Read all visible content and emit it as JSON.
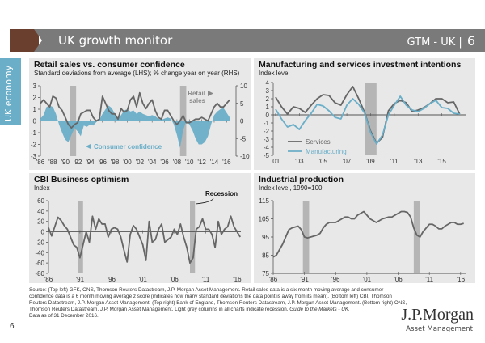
{
  "header": {
    "title": "UK growth monitor",
    "tag": "GTM - UK",
    "page": "6"
  },
  "sidebar": {
    "label": "UK economy"
  },
  "colors": {
    "brown": "#6b3f2e",
    "gray_bar": "#7a7a7a",
    "accent_blue": "#6aaec8",
    "line_gray": "#666666",
    "recession": "#b5b5b5"
  },
  "chart_data": [
    {
      "id": "retail",
      "type": "line",
      "title": "Retail sales vs. consumer confidence",
      "subtitle": "Standard deviations from average (LHS); % change year on year (RHS)",
      "x_ticks": [
        "'86",
        "'88",
        "'90",
        "'92",
        "'94",
        "'96",
        "'98",
        "'00",
        "'02",
        "'04",
        "'06",
        "'08",
        "'10",
        "'12",
        "'14",
        "'16"
      ],
      "xlim": [
        1986,
        2017
      ],
      "ylim_left": [
        -3,
        3
      ],
      "yticks_left": [
        3,
        2,
        1,
        0,
        -1,
        -2,
        -3
      ],
      "ylim_right": [
        -10,
        10
      ],
      "yticks_right": [
        10,
        5,
        0,
        -5,
        -10
      ],
      "recessions": [
        [
          1990.75,
          1991.75
        ],
        [
          2008.5,
          2009.5
        ]
      ],
      "series": [
        {
          "name": "Consumer confidence",
          "axis": "left",
          "style": "area",
          "color": "#6aaec8",
          "x": [
            1986,
            1986.5,
            1987,
            1987.5,
            1988,
            1988.5,
            1989,
            1989.5,
            1990,
            1990.5,
            1991,
            1991.5,
            1992,
            1992.5,
            1993,
            1993.5,
            1994,
            1994.5,
            1995,
            1995.5,
            1996,
            1996.5,
            1997,
            1997.5,
            1998,
            1998.5,
            1999,
            1999.5,
            2000,
            2000.5,
            2001,
            2001.5,
            2002,
            2002.5,
            2003,
            2003.5,
            2004,
            2004.5,
            2005,
            2005.5,
            2006,
            2006.5,
            2007,
            2007.5,
            2008,
            2008.5,
            2009,
            2009.5,
            2010,
            2010.5,
            2011,
            2011.5,
            2012,
            2012.5,
            2013,
            2013.5,
            2014,
            2014.5,
            2015,
            2015.5,
            2016,
            2016.5
          ],
          "values": [
            0.2,
            0.5,
            1.2,
            1.3,
            1.2,
            0.6,
            -0.3,
            -1.0,
            -1.6,
            -1.8,
            -1.2,
            -0.6,
            -0.9,
            -1.3,
            -0.4,
            -0.5,
            -0.3,
            -0.4,
            -0.1,
            0.1,
            0.6,
            1.0,
            1.3,
            1.1,
            0.6,
            0.2,
            0.5,
            0.9,
            1.0,
            0.8,
            0.9,
            0.6,
            0.8,
            0.6,
            0.5,
            0.4,
            0.5,
            0.4,
            0.2,
            0.1,
            0.2,
            0.3,
            0.2,
            -0.3,
            -1.2,
            -2.3,
            -0.8,
            0.0,
            -0.3,
            -0.8,
            -1.5,
            -2.0,
            -2.0,
            -1.8,
            -1.3,
            -0.3,
            0.5,
            0.8,
            1.0,
            1.1,
            0.7,
            0.3
          ]
        },
        {
          "name": "Retail sales",
          "axis": "right",
          "style": "line",
          "color": "#666666",
          "x": [
            1986,
            1986.5,
            1987,
            1987.5,
            1988,
            1988.5,
            1989,
            1989.5,
            1990,
            1990.5,
            1991,
            1991.5,
            1992,
            1992.5,
            1993,
            1993.5,
            1994,
            1994.5,
            1995,
            1995.5,
            1996,
            1996.5,
            1997,
            1997.5,
            1998,
            1998.5,
            1999,
            1999.5,
            2000,
            2000.5,
            2001,
            2001.5,
            2002,
            2002.5,
            2003,
            2003.5,
            2004,
            2004.5,
            2005,
            2005.5,
            2006,
            2006.5,
            2007,
            2007.5,
            2008,
            2008.5,
            2009,
            2009.5,
            2010,
            2010.5,
            2011,
            2011.5,
            2012,
            2012.5,
            2013,
            2013.5,
            2014,
            2014.5,
            2015,
            2015.5,
            2016,
            2016.5
          ],
          "values": [
            5,
            6,
            5,
            4,
            7,
            6.5,
            4,
            3,
            1,
            -1,
            -2,
            -1,
            -0.5,
            2,
            2.5,
            3,
            3,
            1,
            0,
            0.5,
            7,
            5,
            3,
            2,
            2,
            0.5,
            3.5,
            2.5,
            3,
            6,
            7,
            4,
            8,
            5,
            3.5,
            5,
            6,
            3,
            1,
            0.5,
            3,
            3,
            1.5,
            0,
            -1,
            0,
            1.5,
            -0.5,
            -0.5,
            0,
            0.5,
            0.5,
            1,
            0.5,
            0,
            2,
            4,
            5,
            4,
            4,
            5,
            6
          ]
        }
      ],
      "annotations": [
        "Retail sales",
        "Consumer confidence"
      ]
    },
    {
      "id": "investment",
      "type": "line",
      "title": "Manufacturing and services investment intentions",
      "subtitle": "Index level",
      "x_ticks": [
        "'01",
        "'03",
        "'05",
        "'07",
        "'09",
        "'11",
        "'13",
        "'15"
      ],
      "xlim": [
        2000.8,
        2017
      ],
      "ylim": [
        -5,
        4
      ],
      "yticks": [
        4,
        3,
        2,
        1,
        0,
        -1,
        -2,
        -3,
        -4,
        -5
      ],
      "recessions": [
        [
          2008.5,
          2009.5
        ]
      ],
      "legend": "bottom-left",
      "series": [
        {
          "name": "Services",
          "color": "#666666",
          "x": [
            2001,
            2001.5,
            2002,
            2002.5,
            2003,
            2003.5,
            2004,
            2004.5,
            2005,
            2005.5,
            2006,
            2006.5,
            2007,
            2007.5,
            2008,
            2008.5,
            2009,
            2009.5,
            2010,
            2010.5,
            2011,
            2011.5,
            2012,
            2012.5,
            2013,
            2013.5,
            2014,
            2014.5,
            2015,
            2015.5,
            2016,
            2016.5
          ],
          "values": [
            2.2,
            1.0,
            0.1,
            1.0,
            0.8,
            0.3,
            1.2,
            2.0,
            2.5,
            2.4,
            1.5,
            1.2,
            2.5,
            3.5,
            2.0,
            0.3,
            -2.0,
            -3.5,
            -2.8,
            0.5,
            1.4,
            1.8,
            1.5,
            0.4,
            0.6,
            0.9,
            1.4,
            2.0,
            2.0,
            1.5,
            1.6,
            0.1
          ]
        },
        {
          "name": "Manufacturing",
          "color": "#6aaec8",
          "x": [
            2001,
            2001.5,
            2002,
            2002.5,
            2003,
            2003.5,
            2004,
            2004.5,
            2005,
            2005.5,
            2006,
            2006.5,
            2007,
            2007.5,
            2008,
            2008.5,
            2009,
            2009.5,
            2010,
            2010.5,
            2011,
            2011.5,
            2012,
            2012.5,
            2013,
            2013.5,
            2014,
            2014.5,
            2015,
            2015.5,
            2016,
            2016.5
          ],
          "values": [
            0.7,
            -0.5,
            -1.5,
            -1.2,
            -1.8,
            -0.7,
            0.2,
            1.3,
            1.1,
            0.5,
            -0.3,
            -0.5,
            1.2,
            2.0,
            1.3,
            0.2,
            -2.2,
            -3.6,
            -2.5,
            0.0,
            1.2,
            2.3,
            1.2,
            0.6,
            0.4,
            0.8,
            1.4,
            1.8,
            0.9,
            0.8,
            0.2,
            0.1
          ]
        }
      ]
    },
    {
      "id": "cbi",
      "type": "line",
      "title": "CBI Business optimism",
      "subtitle": "Index",
      "x_ticks": [
        "'86",
        "'91",
        "'96",
        "'01",
        "'06",
        "'11",
        "'16"
      ],
      "xlim": [
        1986,
        2016.6
      ],
      "ylim": [
        -80,
        60
      ],
      "yticks": [
        60,
        40,
        20,
        0,
        -20,
        -40,
        -60,
        -80
      ],
      "recessions": [
        [
          1990.75,
          1991.5
        ],
        [
          2008.5,
          2009.3
        ]
      ],
      "annotation": "Recession",
      "series": [
        {
          "name": "CBI Business optimism",
          "color": "#666666",
          "x": [
            1986,
            1986.5,
            1987,
            1987.5,
            1988,
            1988.5,
            1989,
            1989.5,
            1990,
            1990.5,
            1991,
            1991.5,
            1992,
            1992.5,
            1993,
            1993.5,
            1994,
            1994.5,
            1995,
            1995.5,
            1996,
            1996.5,
            1997,
            1997.5,
            1998,
            1998.5,
            1999,
            1999.5,
            2000,
            2000.5,
            2001,
            2001.5,
            2002,
            2002.5,
            2003,
            2003.5,
            2004,
            2004.5,
            2005,
            2005.5,
            2006,
            2006.5,
            2007,
            2007.5,
            2008,
            2008.5,
            2009,
            2009.5,
            2010,
            2010.5,
            2011,
            2011.5,
            2012,
            2012.5,
            2013,
            2013.5,
            2014,
            2014.5,
            2015,
            2015.5,
            2016,
            2016.5
          ],
          "values": [
            8,
            -8,
            10,
            28,
            22,
            12,
            5,
            -10,
            -25,
            -30,
            -50,
            -25,
            0,
            -20,
            30,
            5,
            25,
            15,
            15,
            -10,
            5,
            8,
            5,
            -10,
            -35,
            -58,
            -5,
            12,
            5,
            -10,
            -25,
            -55,
            20,
            -20,
            -15,
            5,
            15,
            -20,
            -15,
            -10,
            5,
            -5,
            15,
            -10,
            -30,
            -60,
            -50,
            5,
            10,
            25,
            5,
            5,
            -5,
            -30,
            20,
            -5,
            5,
            10,
            30,
            10,
            0,
            -10
          ]
        }
      ]
    },
    {
      "id": "industrial",
      "type": "line",
      "title": "Industrial production",
      "subtitle": "Index level, 1990=100",
      "x_ticks": [
        "'86",
        "'91",
        "'96",
        "'01",
        "'06",
        "'11",
        "'16"
      ],
      "xlim": [
        1986,
        2016.8
      ],
      "ylim": [
        75,
        115
      ],
      "yticks": [
        115,
        105,
        95,
        85,
        75
      ],
      "recessions": [
        [
          1990.75,
          1991.75
        ],
        [
          2008.5,
          2009.5
        ]
      ],
      "series": [
        {
          "name": "Industrial production",
          "color": "#666666",
          "x": [
            1986,
            1986.5,
            1987,
            1987.5,
            1988,
            1988.5,
            1989,
            1989.5,
            1990,
            1990.5,
            1991,
            1991.5,
            1992,
            1992.5,
            1993,
            1993.5,
            1994,
            1994.5,
            1995,
            1995.5,
            1996,
            1996.5,
            1997,
            1997.5,
            1998,
            1998.5,
            1999,
            1999.5,
            2000,
            2000.5,
            2001,
            2001.5,
            2002,
            2002.5,
            2003,
            2003.5,
            2004,
            2004.5,
            2005,
            2005.5,
            2006,
            2006.5,
            2007,
            2007.5,
            2008,
            2008.5,
            2009,
            2009.5,
            2010,
            2010.5,
            2011,
            2011.5,
            2012,
            2012.5,
            2013,
            2013.5,
            2014,
            2014.5,
            2015,
            2015.5,
            2016,
            2016.5
          ],
          "values": [
            84,
            85,
            88,
            91,
            95,
            99,
            100,
            100.5,
            101,
            99,
            95,
            94.5,
            95,
            95.5,
            96,
            97,
            100,
            102,
            103,
            103,
            103,
            104,
            105,
            106,
            106,
            105,
            105,
            107,
            108,
            109,
            107,
            105,
            104,
            103,
            104,
            105,
            105.5,
            106,
            106,
            107,
            108,
            109,
            109,
            108.5,
            106,
            100,
            96,
            95,
            98,
            100,
            102,
            102,
            101,
            99.5,
            99.5,
            101,
            102,
            103,
            103,
            102,
            102,
            102.5
          ]
        }
      ]
    }
  ],
  "footer": {
    "source": "Source: (Top left) GFK, ONS, Thomson Reuters Datastream, J.P. Morgan Asset Management. Retail sales data is a six month moving average and consumer confidence data is a 6 month moving average z score (indicates how many standard deviations the data point is away from its mean). (Bottom left) CBI, Thomson Reuters Datastream, J.P. Morgan Asset Management. (Top right) Bank of England, Thomson Reuters Datastream, J.P. Morgan Asset Management. (Bottom right) ONS, Thomson Reuters Datastream, J.P. Morgan Asset Management. Light grey columns in all charts indicate recession.",
    "guide": "Guide to the Markets - UK.",
    "date": "Data as of 31 December 2016.",
    "page_number": "6",
    "logo_line1": "J.P.Morgan",
    "logo_line2": "Asset Management"
  }
}
